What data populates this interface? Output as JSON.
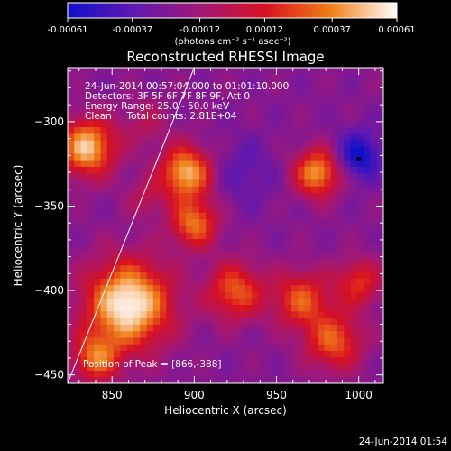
{
  "chart_data": {
    "type": "heatmap",
    "title": "Reconstructed RHESSI Image",
    "colorbar": {
      "min": -0.00061,
      "max": 0.00061,
      "tick_values": [
        -0.00061,
        -0.00037,
        -0.00012,
        0.00012,
        0.00037,
        0.00061
      ],
      "tick_labels": [
        "-0.00061",
        "-0.00037",
        "-0.00012",
        "0.00012",
        "0.00037",
        "0.00061"
      ],
      "units_label": "(photons cm⁻² s⁻¹ asec⁻²)",
      "colors": [
        "#1010c8",
        "#6018b0",
        "#a01878",
        "#d81020",
        "#f08018",
        "#ffffff"
      ]
    },
    "xlabel": "Heliocentric X (arcsec)",
    "ylabel": "Heliocentric Y (arcsec)",
    "xlim": [
      823,
      1015
    ],
    "ylim": [
      -455,
      -268
    ],
    "x_ticks": [
      850,
      900,
      950,
      1000
    ],
    "x_tick_labels": [
      "850",
      "900",
      "950",
      "1000"
    ],
    "y_ticks": [
      -300,
      -350,
      -400,
      -450
    ],
    "y_tick_labels": [
      "−300",
      "−350",
      "−400",
      "−450"
    ],
    "background_level": -0.00022,
    "blobs": [
      {
        "x": 860,
        "y": -408,
        "sigma": 18,
        "amp": 0.00085
      },
      {
        "x": 835,
        "y": -315,
        "sigma": 12,
        "amp": 0.00072
      },
      {
        "x": 895,
        "y": -330,
        "sigma": 11,
        "amp": 0.0007
      },
      {
        "x": 900,
        "y": -360,
        "sigma": 10,
        "amp": 0.00055
      },
      {
        "x": 975,
        "y": -330,
        "sigma": 10,
        "amp": 0.00065
      },
      {
        "x": 925,
        "y": -400,
        "sigma": 12,
        "amp": 0.0005
      },
      {
        "x": 965,
        "y": -405,
        "sigma": 12,
        "amp": 0.00048
      },
      {
        "x": 985,
        "y": -430,
        "sigma": 12,
        "amp": 0.0005
      },
      {
        "x": 1000,
        "y": -395,
        "sigma": 10,
        "amp": 0.0004
      },
      {
        "x": 840,
        "y": -440,
        "sigma": 10,
        "amp": 0.0005
      },
      {
        "x": 1000,
        "y": -320,
        "sigma": 10,
        "amp": -0.0004
      },
      {
        "x": 930,
        "y": -330,
        "sigma": 14,
        "amp": -0.00015
      },
      {
        "x": 870,
        "y": -300,
        "sigma": 10,
        "amp": 0.00018
      },
      {
        "x": 870,
        "y": -345,
        "sigma": 8,
        "amp": 0.0002
      }
    ],
    "limb_line": {
      "x": [
        823,
        900
      ],
      "y": [
        -455,
        -268
      ]
    },
    "peak_marker": {
      "x": 1000,
      "y": -322
    },
    "annotations": [
      "24-Jun-2014 00:57:04.000 to 01:01:10.000",
      "Detectors: 3F 5F 6F 7F 8F 9F, Att 0",
      "Energy Range: 25.0 - 50.0 keV",
      "Clean     Total counts: 2.81E+04"
    ],
    "peak_label": "Position of Peak = [866,-388]",
    "timestamp": "24-Jun-2014 01:54"
  }
}
